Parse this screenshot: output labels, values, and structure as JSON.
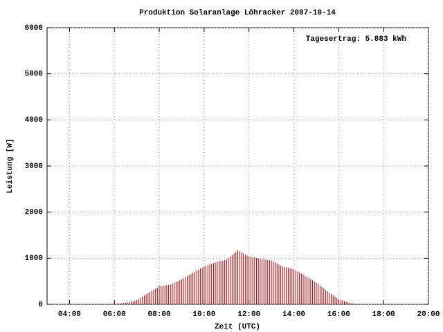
{
  "chart_data": {
    "type": "impulse",
    "title": "Produktion Solaranlage Löhracker 2007-10-14",
    "annotation": "Tagesertrag: 5.883 kWh",
    "x_label": "Zeit (UTC)",
    "y_label": "Leistung [W]",
    "color": "#c00000",
    "grid": true,
    "xlim": [
      180,
      1200
    ],
    "xticks": [
      {
        "value": 240,
        "label": "04:00"
      },
      {
        "value": 360,
        "label": "06:00"
      },
      {
        "value": 480,
        "label": "08:00"
      },
      {
        "value": 600,
        "label": "10:00"
      },
      {
        "value": 720,
        "label": "12:00"
      },
      {
        "value": 840,
        "label": "14:00"
      },
      {
        "value": 960,
        "label": "16:00"
      },
      {
        "value": 1080,
        "label": "18:00"
      },
      {
        "value": 1200,
        "label": "20:00"
      }
    ],
    "ylim": [
      0,
      6000
    ],
    "yticks": [
      0,
      1000,
      2000,
      3000,
      4000,
      5000,
      6000
    ],
    "x": [
      360,
      365,
      370,
      375,
      380,
      385,
      390,
      395,
      400,
      405,
      410,
      415,
      420,
      425,
      430,
      435,
      440,
      445,
      450,
      455,
      460,
      465,
      470,
      475,
      480,
      485,
      490,
      495,
      500,
      505,
      510,
      515,
      520,
      525,
      530,
      535,
      540,
      545,
      550,
      555,
      560,
      565,
      570,
      575,
      580,
      585,
      590,
      595,
      600,
      605,
      610,
      615,
      620,
      625,
      630,
      635,
      640,
      645,
      650,
      655,
      660,
      665,
      670,
      675,
      680,
      685,
      690,
      695,
      700,
      705,
      710,
      715,
      720,
      725,
      730,
      735,
      740,
      745,
      750,
      755,
      760,
      765,
      770,
      775,
      780,
      785,
      790,
      795,
      800,
      805,
      810,
      815,
      820,
      825,
      830,
      835,
      840,
      845,
      850,
      855,
      860,
      865,
      870,
      875,
      880,
      885,
      890,
      895,
      900,
      905,
      910,
      915,
      920,
      925,
      930,
      935,
      940,
      945,
      950,
      955,
      960,
      965,
      970,
      975,
      980,
      985,
      990,
      995,
      1000,
      1005,
      1010
    ],
    "values": [
      10,
      13,
      17,
      20,
      23,
      27,
      30,
      40,
      50,
      60,
      70,
      80,
      90,
      115,
      140,
      165,
      190,
      215,
      240,
      265,
      290,
      315,
      340,
      365,
      390,
      397,
      403,
      410,
      417,
      423,
      430,
      448,
      467,
      485,
      503,
      522,
      540,
      563,
      587,
      610,
      633,
      657,
      680,
      703,
      727,
      750,
      773,
      797,
      820,
      835,
      850,
      865,
      880,
      895,
      910,
      920,
      930,
      940,
      950,
      960,
      970,
      1003,
      1037,
      1070,
      1103,
      1137,
      1170,
      1148,
      1127,
      1105,
      1083,
      1062,
      1040,
      1032,
      1023,
      1015,
      1007,
      998,
      990,
      983,
      977,
      970,
      963,
      957,
      950,
      928,
      907,
      885,
      863,
      842,
      820,
      810,
      800,
      790,
      780,
      770,
      760,
      737,
      713,
      690,
      667,
      643,
      620,
      595,
      570,
      545,
      520,
      495,
      470,
      438,
      407,
      375,
      343,
      312,
      280,
      252,
      223,
      195,
      167,
      138,
      110,
      97,
      83,
      70,
      57,
      43,
      30,
      24,
      18,
      11,
      5
    ]
  }
}
